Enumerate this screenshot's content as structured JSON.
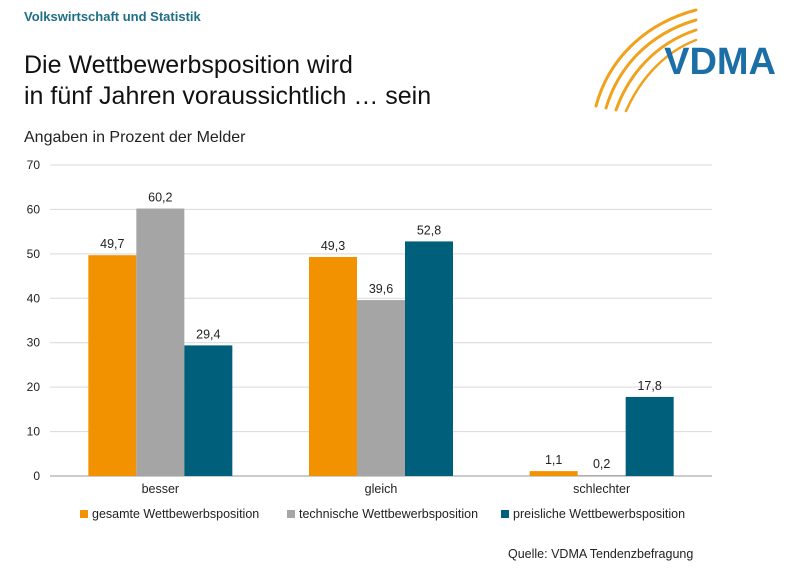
{
  "header": {
    "section": "Volkswirtschaft und Statistik",
    "title_lines": [
      "Die Wettbewerbsposition wird",
      "in fünf Jahren voraussichtlich … sein"
    ],
    "logo_text": "VDMA"
  },
  "footer": {
    "source": "Quelle: VDMA Tendenzbefragung"
  },
  "colors": {
    "accent_text": "#1f6e87",
    "logo_blue": "#1b6ea6",
    "logo_orange": "#f0a21e",
    "grid": "#d9d9d9",
    "axis": "#999999"
  },
  "chart_data": {
    "type": "bar",
    "title": "Angaben in Prozent der Melder",
    "categories": [
      "besser",
      "gleich",
      "schlechter"
    ],
    "ylim": [
      0,
      70
    ],
    "yticks": [
      0,
      10,
      20,
      30,
      40,
      50,
      60,
      70
    ],
    "grid": true,
    "legend_position": "bottom",
    "series": [
      {
        "name": "gesamte Wettbewerbsposition",
        "color": "#f29200",
        "values": [
          49.7,
          49.3,
          1.1
        ],
        "labels": [
          "49,7",
          "49,3",
          "1,1"
        ]
      },
      {
        "name": "technische Wettbewerbsposition",
        "color": "#a5a5a5",
        "values": [
          60.2,
          39.6,
          0.2
        ],
        "labels": [
          "60,2",
          "39,6",
          "0,2"
        ]
      },
      {
        "name": "preisliche Wettbewerbsposition",
        "color": "#005f7a",
        "values": [
          29.4,
          52.8,
          17.8
        ],
        "labels": [
          "29,4",
          "52,8",
          "17,8"
        ]
      }
    ]
  }
}
